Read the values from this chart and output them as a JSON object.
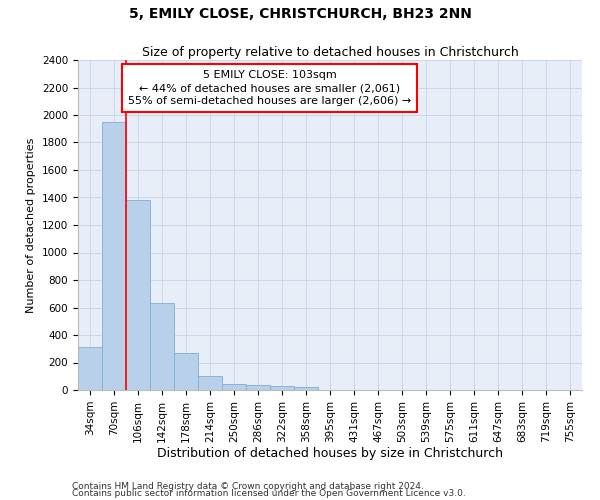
{
  "title": "5, EMILY CLOSE, CHRISTCHURCH, BH23 2NN",
  "subtitle": "Size of property relative to detached houses in Christchurch",
  "xlabel": "Distribution of detached houses by size in Christchurch",
  "ylabel": "Number of detached properties",
  "footnote1": "Contains HM Land Registry data © Crown copyright and database right 2024.",
  "footnote2": "Contains public sector information licensed under the Open Government Licence v3.0.",
  "bar_values": [
    315,
    1950,
    1380,
    630,
    270,
    100,
    45,
    35,
    30,
    25,
    0,
    0,
    0,
    0,
    0,
    0,
    0,
    0,
    0,
    0,
    0
  ],
  "bin_labels": [
    "34sqm",
    "70sqm",
    "106sqm",
    "142sqm",
    "178sqm",
    "214sqm",
    "250sqm",
    "286sqm",
    "322sqm",
    "358sqm",
    "395sqm",
    "431sqm",
    "467sqm",
    "503sqm",
    "539sqm",
    "575sqm",
    "611sqm",
    "647sqm",
    "683sqm",
    "719sqm",
    "755sqm"
  ],
  "bar_color": "#b8d0ea",
  "bar_edge_color": "#7aafd4",
  "grid_color": "#c8d8ec",
  "background_color": "#e8eef8",
  "red_line_x": 1.5,
  "annotation_line1": "5 EMILY CLOSE: 103sqm",
  "annotation_line2": "← 44% of detached houses are smaller (2,061)",
  "annotation_line3": "55% of semi-detached houses are larger (2,606) →",
  "ylim": [
    0,
    2400
  ],
  "yticks": [
    0,
    200,
    400,
    600,
    800,
    1000,
    1200,
    1400,
    1600,
    1800,
    2000,
    2200,
    2400
  ],
  "title_fontsize": 10,
  "subtitle_fontsize": 9,
  "ylabel_fontsize": 8,
  "xlabel_fontsize": 9,
  "tick_fontsize": 7.5,
  "footnote_fontsize": 6.5,
  "annot_fontsize": 8
}
